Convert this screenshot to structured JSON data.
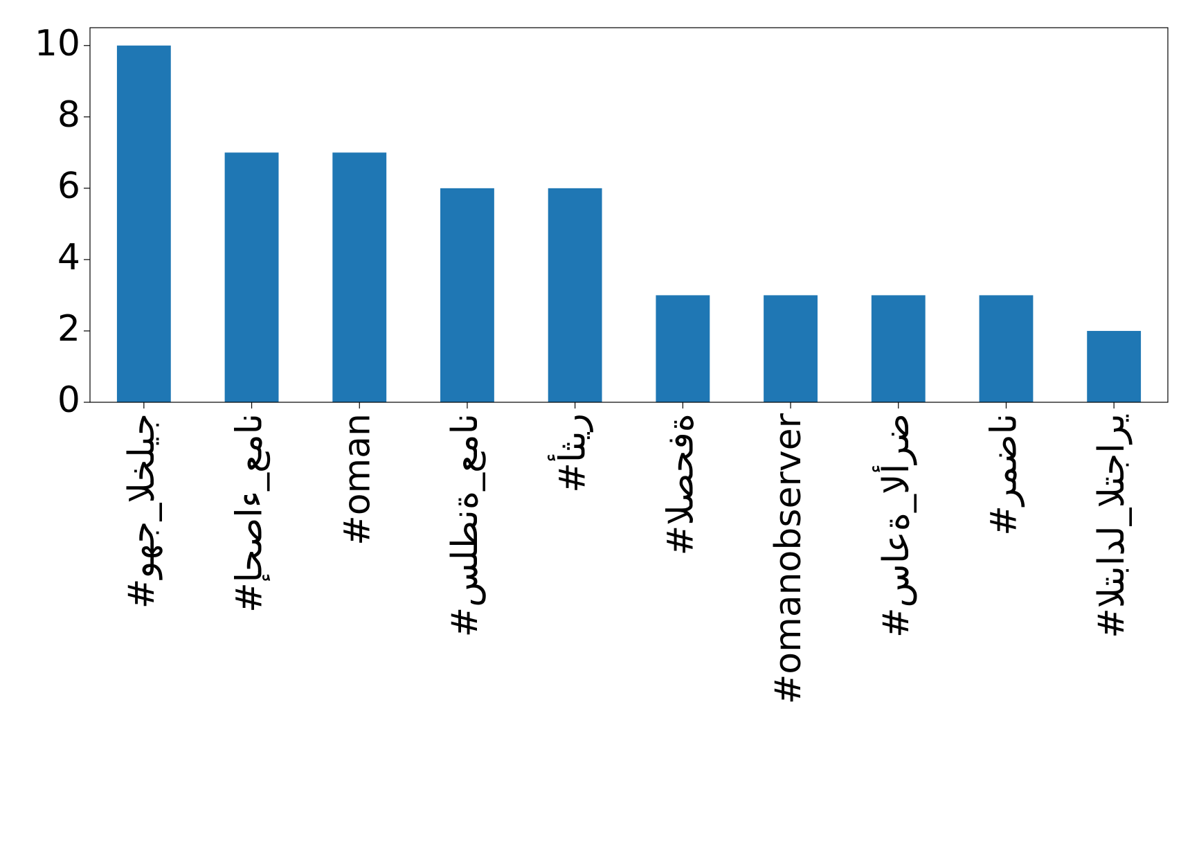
{
  "chart_data": {
    "type": "bar",
    "categories": [
      "#وهج_الخليج",
      "#إحصاء_عمان",
      "#oman",
      "#سلطنة_عمان",
      "#أثير",
      "#الصحفة",
      "#omanobserver",
      "#ساعة_الأرض",
      "#رمضان",
      "#التبادل_التجاري"
    ],
    "values": [
      10,
      7,
      7,
      6,
      6,
      3,
      3,
      3,
      3,
      2
    ],
    "color": "#1f77b4",
    "ylim": [
      0,
      10.5
    ],
    "yticks": [
      0,
      2,
      4,
      6,
      8,
      10
    ],
    "grid": false
  }
}
